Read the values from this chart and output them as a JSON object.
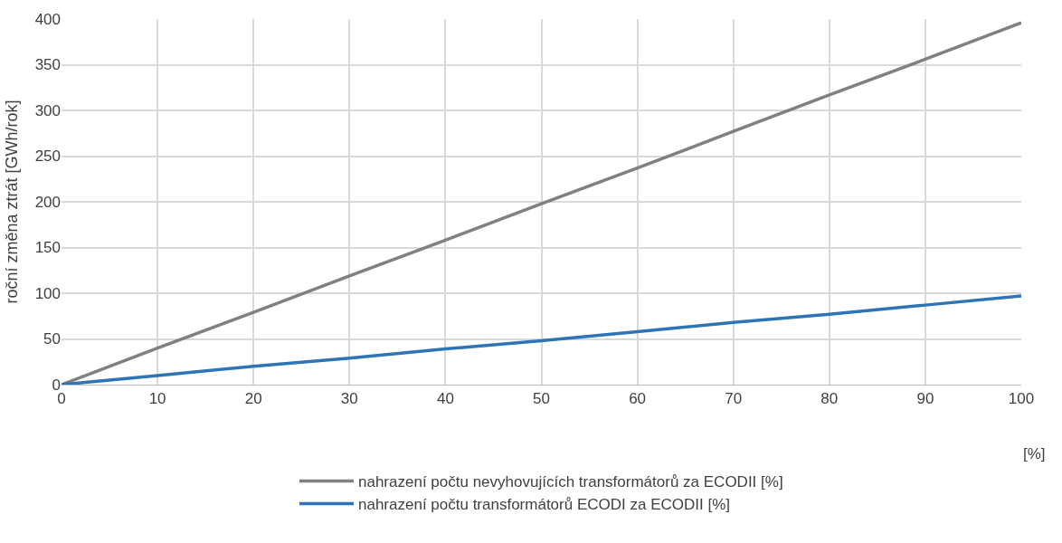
{
  "chart_data": {
    "type": "line",
    "xlabel": "[%]",
    "ylabel": "roční změna ztrát [GWh/rok]",
    "x": [
      0,
      10,
      20,
      30,
      40,
      50,
      60,
      70,
      80,
      90,
      100
    ],
    "series": [
      {
        "name": "nahrazení počtu nevyhovujících transformátorů za ECODII [%]",
        "color": "#808080",
        "values": [
          0,
          40,
          79,
          119,
          158,
          198,
          237,
          277,
          317,
          356,
          396
        ]
      },
      {
        "name": "nahrazení počtu transformátorů ECODI za ECODII [%]",
        "color": "#2e75b6",
        "values": [
          0,
          10,
          20,
          29,
          39,
          48,
          58,
          68,
          77,
          87,
          97
        ]
      }
    ],
    "xlim": [
      0,
      100
    ],
    "xticks": [
      0,
      10,
      20,
      30,
      40,
      50,
      60,
      70,
      80,
      90,
      100
    ],
    "ylim": [
      0,
      400
    ],
    "yticks": [
      0,
      50,
      100,
      150,
      200,
      250,
      300,
      350,
      400
    ],
    "grid": true,
    "legend": "bottom",
    "marker": "none",
    "line_style": "solid"
  }
}
